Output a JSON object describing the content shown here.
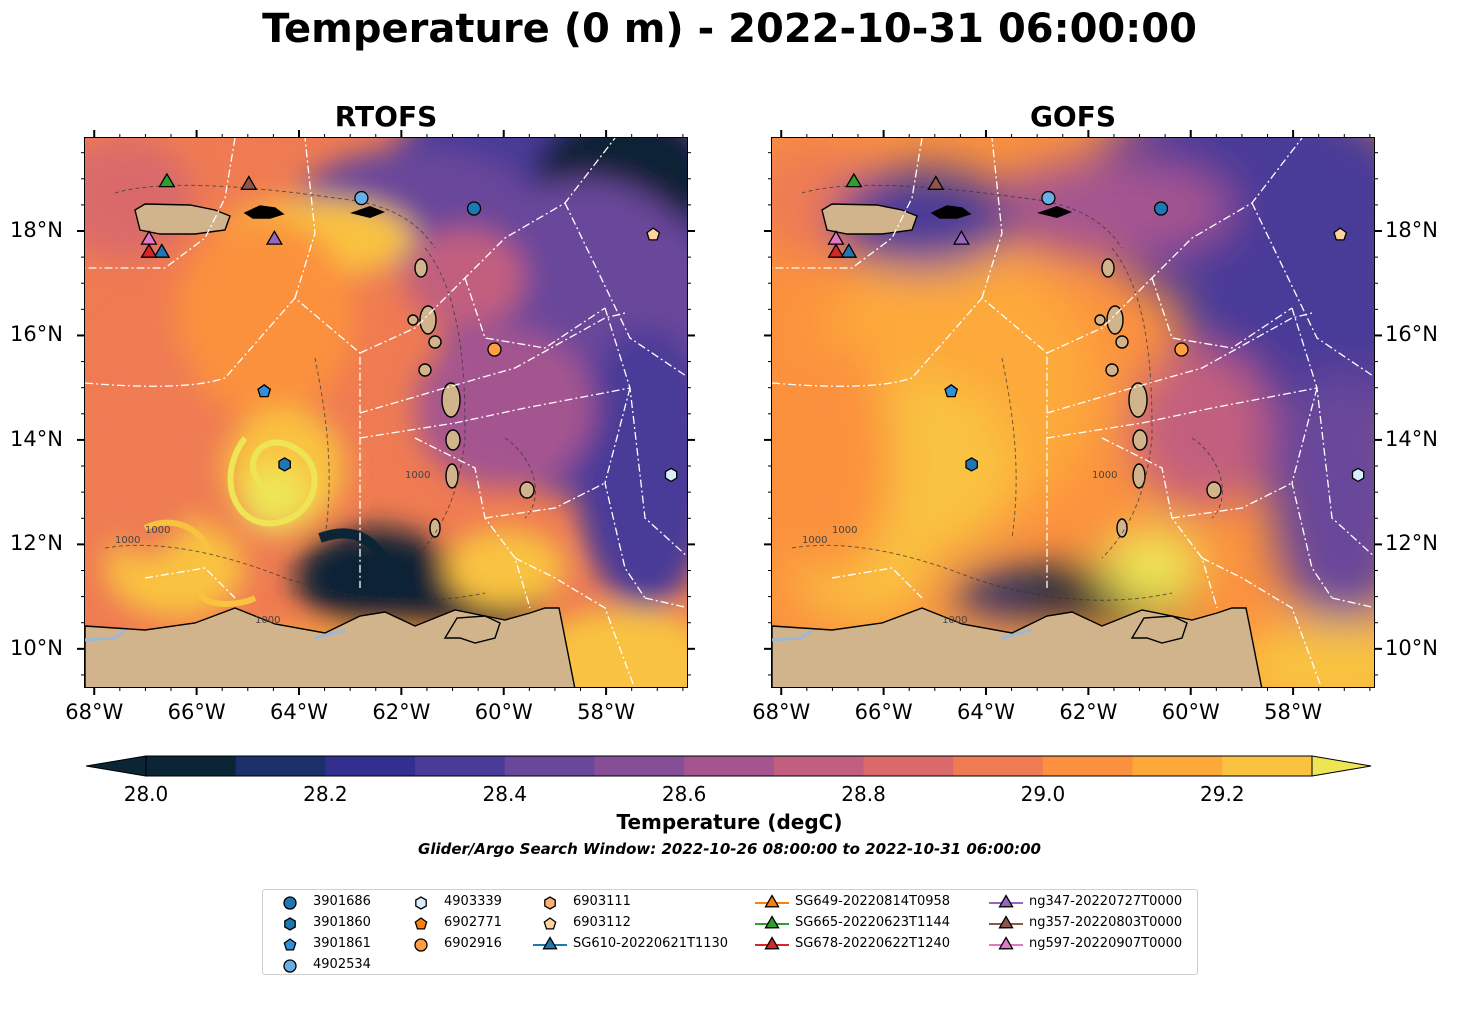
{
  "title": "Temperature (0 m) - 2022-10-31 06:00:00",
  "panels": [
    {
      "title": "RTOFS"
    },
    {
      "title": "GOFS"
    }
  ],
  "axes": {
    "lon_ticks": [
      "68°W",
      "66°W",
      "64°W",
      "62°W",
      "60°W",
      "58°W"
    ],
    "lon_values": [
      -68,
      -66,
      -64,
      -62,
      -60,
      -58
    ],
    "lat_ticks": [
      "18°N",
      "16°N",
      "14°N",
      "12°N",
      "10°N"
    ],
    "lat_values": [
      18,
      16,
      14,
      12,
      10
    ],
    "lon_range": [
      -68.2,
      -56.4
    ],
    "lat_range": [
      9.25,
      19.8
    ]
  },
  "colorbar": {
    "label": "Temperature (degC)",
    "min": 27.9,
    "max": 29.3,
    "range_inner": [
      28.0,
      29.3
    ],
    "ticks": [
      "28.0",
      "28.2",
      "28.4",
      "28.6",
      "28.8",
      "29.0",
      "29.2"
    ],
    "tick_values": [
      28.0,
      28.2,
      28.4,
      28.6,
      28.8,
      29.0,
      29.2
    ],
    "colors": [
      "#0b2436",
      "#1b2f6b",
      "#332f8f",
      "#4a3b98",
      "#69479a",
      "#854e97",
      "#a45590",
      "#c25f7f",
      "#da6a6a",
      "#ef7b52",
      "#fb913e",
      "#fda93a",
      "#f9c240",
      "#eee554"
    ]
  },
  "subtitle": "Glider/Argo Search Window: 2022-10-26 08:00:00 to 2022-10-31 06:00:00",
  "colors": {
    "land": "#d2b48c",
    "eez_lines": "#ffffff"
  },
  "legend": [
    {
      "label": "3901686",
      "marker": "circle",
      "color": "#1f77b4"
    },
    {
      "label": "3901860",
      "marker": "hexagon",
      "color": "#1f77b4"
    },
    {
      "label": "3901861",
      "marker": "pentagon",
      "color": "#2f8fd8"
    },
    {
      "label": "4902534",
      "marker": "circle",
      "color": "#6aaee6"
    },
    {
      "label": "4903339",
      "marker": "hexagon",
      "color": "#d8eefc"
    },
    {
      "label": "6902771",
      "marker": "pentagon",
      "color": "#ff7f0e"
    },
    {
      "label": "6902916",
      "marker": "circle",
      "color": "#ff9f3f"
    },
    {
      "label": "6903111",
      "marker": "hexagon",
      "color": "#ffb070"
    },
    {
      "label": "6903112",
      "marker": "pentagon",
      "color": "#ffd3a0"
    },
    {
      "label": "SG610-20220621T1130",
      "marker": "triangle",
      "color": "#1f77b4",
      "line": true
    },
    {
      "label": "SG649-20220814T0958",
      "marker": "triangle",
      "color": "#ff7f0e",
      "line": true
    },
    {
      "label": "SG665-20220623T1144",
      "marker": "triangle",
      "color": "#2ca02c",
      "line": true
    },
    {
      "label": "SG678-20220622T1240",
      "marker": "triangle",
      "color": "#d62728",
      "line": true
    },
    {
      "label": "ng347-20220727T0000",
      "marker": "triangle",
      "color": "#9467bd",
      "line": true
    },
    {
      "label": "ng357-20220803T0000",
      "marker": "triangle",
      "color": "#8c564b",
      "line": true
    },
    {
      "label": "ng597-20220907T0000",
      "marker": "triangle",
      "color": "#e377c2",
      "line": true
    }
  ],
  "map_markers": [
    {
      "id": "3901686",
      "lon": -60.6,
      "lat": 18.45,
      "marker": "circle",
      "color": "#1f77b4"
    },
    {
      "id": "4902534",
      "lon": -62.8,
      "lat": 18.65,
      "marker": "circle",
      "color": "#6aaee6"
    },
    {
      "id": "6903112",
      "lon": -57.1,
      "lat": 17.95,
      "marker": "pentagon",
      "color": "#ffd3a0"
    },
    {
      "id": "6902916",
      "lon": -60.2,
      "lat": 15.75,
      "marker": "circle",
      "color": "#ff9f3f"
    },
    {
      "id": "3901861",
      "lon": -64.7,
      "lat": 14.95,
      "marker": "pentagon",
      "color": "#2f8fd8"
    },
    {
      "id": "3901860",
      "lon": -64.3,
      "lat": 13.55,
      "marker": "hexagon",
      "color": "#1f77b4"
    },
    {
      "id": "4903339",
      "lon": -56.75,
      "lat": 13.35,
      "marker": "hexagon",
      "color": "#d8eefc"
    },
    {
      "id": "SG665",
      "lon": -66.6,
      "lat": 18.95,
      "marker": "triangle",
      "color": "#2ca02c"
    },
    {
      "id": "ng357",
      "lon": -65.0,
      "lat": 18.9,
      "marker": "triangle",
      "color": "#8c564b"
    },
    {
      "id": "ng347",
      "lon": -64.5,
      "lat": 17.85,
      "marker": "triangle",
      "color": "#9467bd"
    },
    {
      "id": "ng597",
      "lon": -66.95,
      "lat": 17.85,
      "marker": "triangle",
      "color": "#e377c2"
    },
    {
      "id": "SG610",
      "lon": -66.7,
      "lat": 17.6,
      "marker": "triangle",
      "color": "#1f77b4"
    },
    {
      "id": "SG678",
      "lon": -66.95,
      "lat": 17.6,
      "marker": "triangle",
      "color": "#d62728"
    }
  ],
  "contour_labels": [
    "1000",
    "1000",
    "1000",
    "1000"
  ]
}
